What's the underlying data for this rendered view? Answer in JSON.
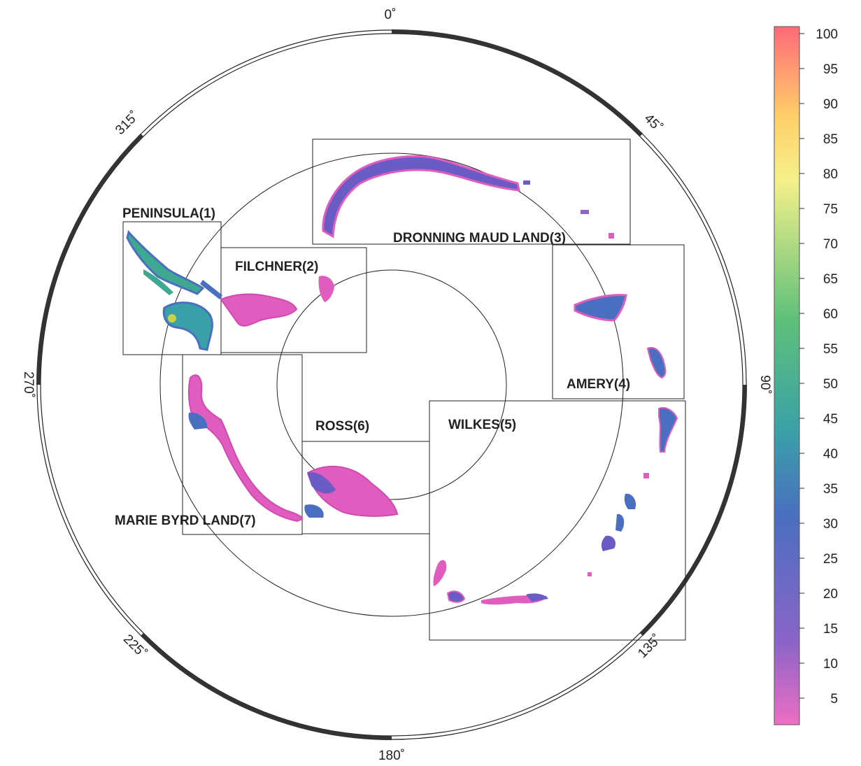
{
  "map": {
    "longitude_labels": {
      "l0": "0˚",
      "l45": "45˚",
      "l90": "90˚",
      "l135": "135˚",
      "l180": "180˚",
      "l225": "225˚",
      "l270": "270˚",
      "l315": "315˚"
    },
    "regions": {
      "peninsula": "PENINSULA(1)",
      "filchner": "FILCHNER(2)",
      "dronning": "DRONNING MAUD LAND(3)",
      "amery": "AMERY(4)",
      "wilkes": "WILKES(5)",
      "ross": "ROSS(6)",
      "marie_byrd": "MARIE BYRD LAND(7)"
    },
    "colorbar": {
      "ticks": [
        "100",
        "95",
        "90",
        "85",
        "80",
        "75",
        "70",
        "65",
        "60",
        "55",
        "50",
        "45",
        "40",
        "35",
        "30",
        "25",
        "20",
        "15",
        "10",
        "5"
      ],
      "colors": [
        "#ff6a78",
        "#ffd06a",
        "#f4f08a",
        "#5ec07a",
        "#3aa0a8",
        "#4a6fc0",
        "#8a64c8",
        "#ee6ec4"
      ]
    },
    "palette": {
      "ice_low": "#e05cbf",
      "ice_mid": "#6a5cc4",
      "ice_blue": "#3a7ec8",
      "ice_green": "#3fa890",
      "ice_yellow": "#c8d448"
    }
  }
}
